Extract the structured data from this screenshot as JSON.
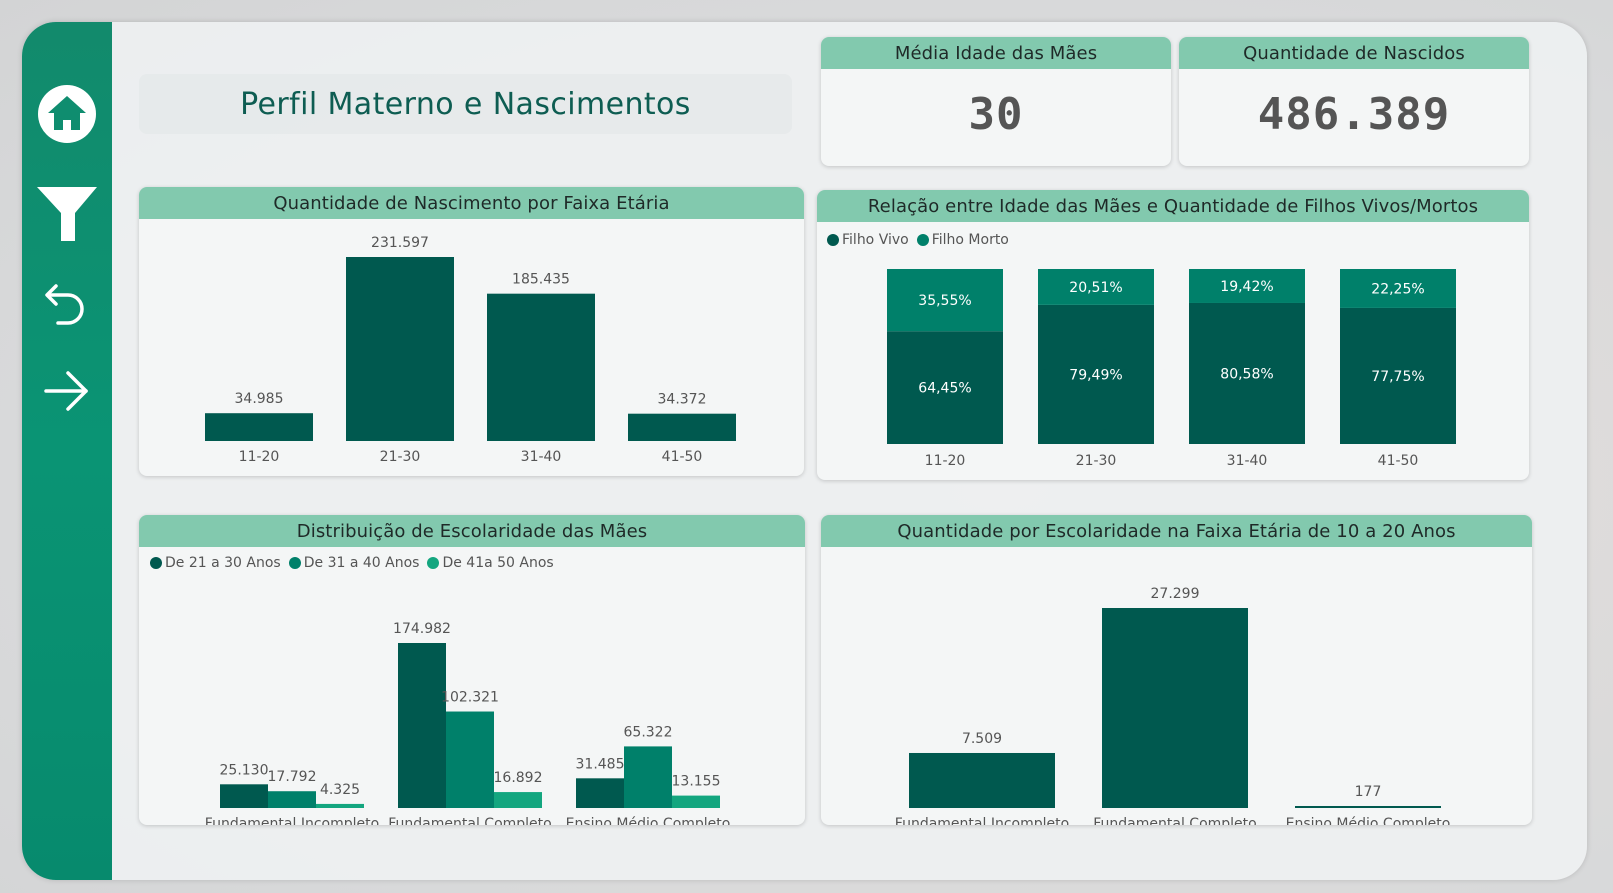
{
  "title": "Perfil Materno e Nascimentos",
  "nav": {
    "home_icon": "home-icon",
    "filter_icon": "filter-icon",
    "back_icon": "undo-arrow-icon",
    "next_icon": "right-arrow-icon"
  },
  "kpis": [
    {
      "label": "Média Idade das Mães",
      "value": "30"
    },
    {
      "label": "Quantidade de Nascidos",
      "value": "486.389"
    }
  ],
  "colors": {
    "dark": "#00594f",
    "mid": "#00806a",
    "light": "#13a67f",
    "header": "#82c9ae"
  },
  "chart_data": [
    {
      "type": "bar",
      "title": "Quantidade de Nascimento por Faixa Etária",
      "categories": [
        "11-20",
        "21-30",
        "31-40",
        "41-50"
      ],
      "values": [
        34985,
        231597,
        185435,
        34372
      ],
      "labels": [
        "34.985",
        "231.597",
        "185.435",
        "34.372"
      ]
    },
    {
      "type": "bar",
      "stacked": "100%",
      "title": "Relação entre Idade das Mães e Quantidade de Filhos Vivos/Mortos",
      "legend": "top-left",
      "categories": [
        "11-20",
        "21-30",
        "31-40",
        "41-50"
      ],
      "series": [
        {
          "name": "Filho Vivo",
          "values": [
            64.45,
            79.49,
            80.58,
            77.75
          ],
          "labels": [
            "64,45%",
            "79,49%",
            "80,58%",
            "77,75%"
          ]
        },
        {
          "name": "Filho Morto",
          "values": [
            35.55,
            20.51,
            19.42,
            22.25
          ],
          "labels": [
            "35,55%",
            "20,51%",
            "19,42%",
            "22,25%"
          ]
        }
      ]
    },
    {
      "type": "bar",
      "title": "Distribuição de Escolaridade das Mães",
      "legend": "top-left",
      "categories": [
        "Fundamental Incompleto",
        "Fundamental Completo",
        "Ensino Médio Completo"
      ],
      "series": [
        {
          "name": "De 21 a 30 Anos",
          "values": [
            25130,
            174982,
            31485
          ],
          "labels": [
            "25.130",
            "174.982",
            "31.485"
          ]
        },
        {
          "name": "De 31 a 40 Anos",
          "values": [
            17792,
            102321,
            65322
          ],
          "labels": [
            "17.792",
            "102.321",
            "65.322"
          ]
        },
        {
          "name": "De 41a 50 Anos",
          "values": [
            4325,
            16892,
            13155
          ],
          "labels": [
            "4.325",
            "16.892",
            "13.155"
          ]
        }
      ]
    },
    {
      "type": "bar",
      "title": "Quantidade por Escolaridade na Faixa Etária de 10 a 20 Anos",
      "categories": [
        "Fundamental Incompleto",
        "Fundamental Completo",
        "Ensino Médio Completo"
      ],
      "values": [
        7509,
        27299,
        177
      ],
      "labels": [
        "7.509",
        "27.299",
        "177"
      ]
    }
  ]
}
